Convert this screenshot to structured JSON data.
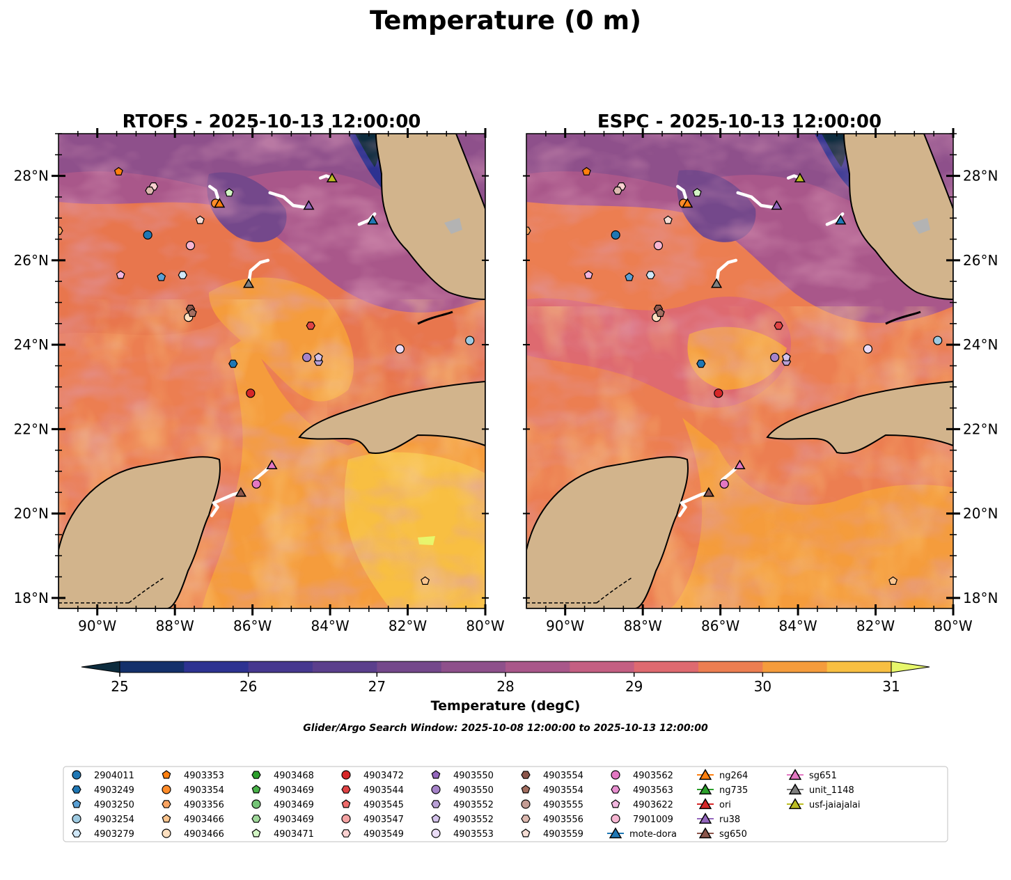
{
  "figure_title": "Temperature (0 m)",
  "colors": {
    "land": "#d2b48c",
    "land_gray": "#b3b3b3",
    "coast": "#000000",
    "track": "#ffffff",
    "bg_warm": "#e8764d",
    "bg_yellow": "#f6c843",
    "bg_orange": "#f7a83d",
    "bg_purple": "#7b4d91"
  },
  "panels": [
    {
      "title": "RTOFS - 2025-10-13 12:00:00"
    },
    {
      "title": "ESPC - 2025-10-13 12:00:00"
    }
  ],
  "lat_labels": [
    "28°N",
    "26°N",
    "24°N",
    "22°N",
    "20°N",
    "18°N"
  ],
  "lon_labels": [
    "90°W",
    "88°W",
    "86°W",
    "84°W",
    "82°W",
    "80°W"
  ],
  "colorbar": {
    "label": "Temperature (degC)",
    "ticks": [
      "25",
      "26",
      "27",
      "28",
      "29",
      "30",
      "31"
    ],
    "min": 25,
    "max": 31,
    "step": 0.5,
    "colors": [
      "#0d2c3e",
      "#14306b",
      "#2d3291",
      "#46388f",
      "#5b3f8c",
      "#74488b",
      "#8e508b",
      "#a9578a",
      "#c45f82",
      "#de6a70",
      "#ec7e51",
      "#f59c3c",
      "#f8bf42",
      "#e7f76b"
    ]
  },
  "search_window": "Glider/Argo Search Window: 2025-10-08 12:00:00 to 2025-10-13 12:00:00",
  "platforms": [
    {
      "label": "2904011",
      "marker": "circle",
      "color": "#1f77b4",
      "lon": -88.7,
      "lat": 26.6
    },
    {
      "label": "4903249",
      "marker": "hexagon",
      "color": "#1f77b4",
      "lon": -86.5,
      "lat": 23.55
    },
    {
      "label": "4903250",
      "marker": "pentagon",
      "color": "#5aa0d4",
      "lon": -88.35,
      "lat": 25.6
    },
    {
      "label": "4903254",
      "marker": "circle",
      "color": "#9ecae1",
      "lon": -80.4,
      "lat": 24.1
    },
    {
      "label": "4903279",
      "marker": "hexagon",
      "color": "#cfe7f7",
      "lon": -87.8,
      "lat": 25.65
    },
    {
      "label": "4903353",
      "marker": "pentagon",
      "color": "#ff7f0e",
      "lon": -89.45,
      "lat": 28.1
    },
    {
      "label": "4903354",
      "marker": "circle",
      "color": "#ff8c2a",
      "lon": -86.95,
      "lat": 27.35
    },
    {
      "label": "4903356",
      "marker": "hexagon",
      "color": "#f9a461",
      "lon": -91.0,
      "lat": 26.7
    },
    {
      "label": "4903466",
      "marker": "pentagon",
      "color": "#fcc58e",
      "lon": -81.55,
      "lat": 18.4
    },
    {
      "label": "4903466",
      "marker": "circle",
      "color": "#fde0c0",
      "lon": -87.65,
      "lat": 24.65
    },
    {
      "label": "4903468",
      "marker": "hexagon",
      "color": "#2ca02c",
      "lon": null,
      "lat": null
    },
    {
      "label": "4903469",
      "marker": "pentagon",
      "color": "#49b349",
      "lon": null,
      "lat": null
    },
    {
      "label": "4903469",
      "marker": "circle",
      "color": "#74c476",
      "lon": null,
      "lat": null
    },
    {
      "label": "4903469",
      "marker": "hexagon",
      "color": "#a1d99b",
      "lon": null,
      "lat": null
    },
    {
      "label": "4903471",
      "marker": "pentagon",
      "color": "#d2f5c4",
      "lon": -86.6,
      "lat": 27.6
    },
    {
      "label": "4903472",
      "marker": "circle",
      "color": "#d62728",
      "lon": -86.05,
      "lat": 22.85
    },
    {
      "label": "4903544",
      "marker": "hexagon",
      "color": "#e04345",
      "lon": -84.5,
      "lat": 24.45
    },
    {
      "label": "4903545",
      "marker": "pentagon",
      "color": "#ef6c6c",
      "lon": null,
      "lat": null
    },
    {
      "label": "4903547",
      "marker": "circle",
      "color": "#f5a3a3",
      "lon": null,
      "lat": null
    },
    {
      "label": "4903549",
      "marker": "hexagon",
      "color": "#fbd1d1",
      "lon": -88.55,
      "lat": 27.75
    },
    {
      "label": "4903550",
      "marker": "pentagon",
      "color": "#9467bd",
      "lon": null,
      "lat": null
    },
    {
      "label": "4903550",
      "marker": "circle",
      "color": "#a683c9",
      "lon": -84.6,
      "lat": 23.7
    },
    {
      "label": "4903552",
      "marker": "hexagon",
      "color": "#b9a0d6",
      "lon": -84.3,
      "lat": 23.6
    },
    {
      "label": "4903552",
      "marker": "pentagon",
      "color": "#d3c2ea",
      "lon": -84.3,
      "lat": 23.7
    },
    {
      "label": "4903553",
      "marker": "circle",
      "color": "#eadcf6",
      "lon": -82.2,
      "lat": 23.9
    },
    {
      "label": "4903554",
      "marker": "hexagon",
      "color": "#8c564b",
      "lon": -87.6,
      "lat": 24.85
    },
    {
      "label": "4903554",
      "marker": "pentagon",
      "color": "#a36e60",
      "lon": -87.55,
      "lat": 24.75
    },
    {
      "label": "4903555",
      "marker": "circle",
      "color": "#c49c94",
      "lon": null,
      "lat": null
    },
    {
      "label": "4903556",
      "marker": "hexagon",
      "color": "#ddb9b0",
      "lon": -88.65,
      "lat": 27.65
    },
    {
      "label": "4903559",
      "marker": "pentagon",
      "color": "#f5ddd5",
      "lon": -87.35,
      "lat": 26.95
    },
    {
      "label": "4903562",
      "marker": "circle",
      "color": "#e377c2",
      "lon": -85.9,
      "lat": 20.7
    },
    {
      "label": "4903563",
      "marker": "hexagon",
      "color": "#e88fd0",
      "lon": null,
      "lat": null
    },
    {
      "label": "4903622",
      "marker": "pentagon",
      "color": "#f2b6df",
      "lon": -89.4,
      "lat": 25.65
    },
    {
      "label": "7901009",
      "marker": "circle",
      "color": "#f7b6d2",
      "lon": -87.6,
      "lat": 26.35
    },
    {
      "label": "mote-dora",
      "marker": "triangle",
      "color": "#1f77b4",
      "lon": -82.9,
      "lat": 26.95
    },
    {
      "label": "ng264",
      "marker": "triangle",
      "color": "#ff7f0e",
      "lon": -86.85,
      "lat": 27.35
    },
    {
      "label": "ng735",
      "marker": "triangle",
      "color": "#2ca02c",
      "lon": null,
      "lat": null
    },
    {
      "label": "ori",
      "marker": "triangle",
      "color": "#d62728",
      "lon": null,
      "lat": null
    },
    {
      "label": "ru38",
      "marker": "triangle",
      "color": "#9467bd",
      "lon": -84.55,
      "lat": 27.3
    },
    {
      "label": "sg650",
      "marker": "triangle",
      "color": "#8c564b",
      "lon": -86.3,
      "lat": 20.5
    },
    {
      "label": "sg651",
      "marker": "triangle",
      "color": "#e377c2",
      "lon": -85.5,
      "lat": 21.15
    },
    {
      "label": "unit_1148",
      "marker": "triangle",
      "color": "#7f7f7f",
      "lon": -86.1,
      "lat": 25.45
    },
    {
      "label": "usf-jaiajalai",
      "marker": "triangle",
      "color": "#bcbd22",
      "lon": -83.95,
      "lat": 27.95
    }
  ],
  "tracks": [
    [
      [
        -87.1,
        27.75
      ],
      [
        -86.95,
        27.65
      ],
      [
        -86.9,
        27.5
      ],
      [
        -86.88,
        27.3
      ]
    ],
    [
      [
        -85.55,
        27.6
      ],
      [
        -85.2,
        27.5
      ],
      [
        -84.95,
        27.3
      ],
      [
        -84.6,
        27.25
      ]
    ],
    [
      [
        -84.25,
        27.95
      ],
      [
        -84.1,
        28.0
      ],
      [
        -83.95,
        27.95
      ]
    ],
    [
      [
        -83.25,
        26.85
      ],
      [
        -83.0,
        26.95
      ],
      [
        -82.85,
        27.1
      ]
    ],
    [
      [
        -85.6,
        26.0
      ],
      [
        -85.8,
        25.95
      ],
      [
        -86.05,
        25.75
      ],
      [
        -86.1,
        25.45
      ]
    ],
    [
      [
        -87.05,
        19.95
      ],
      [
        -86.9,
        20.15
      ],
      [
        -87.0,
        20.25
      ],
      [
        -86.5,
        20.45
      ],
      [
        -86.3,
        20.5
      ]
    ],
    [
      [
        -85.95,
        20.8
      ],
      [
        -85.75,
        20.95
      ],
      [
        -85.5,
        21.15
      ]
    ]
  ]
}
